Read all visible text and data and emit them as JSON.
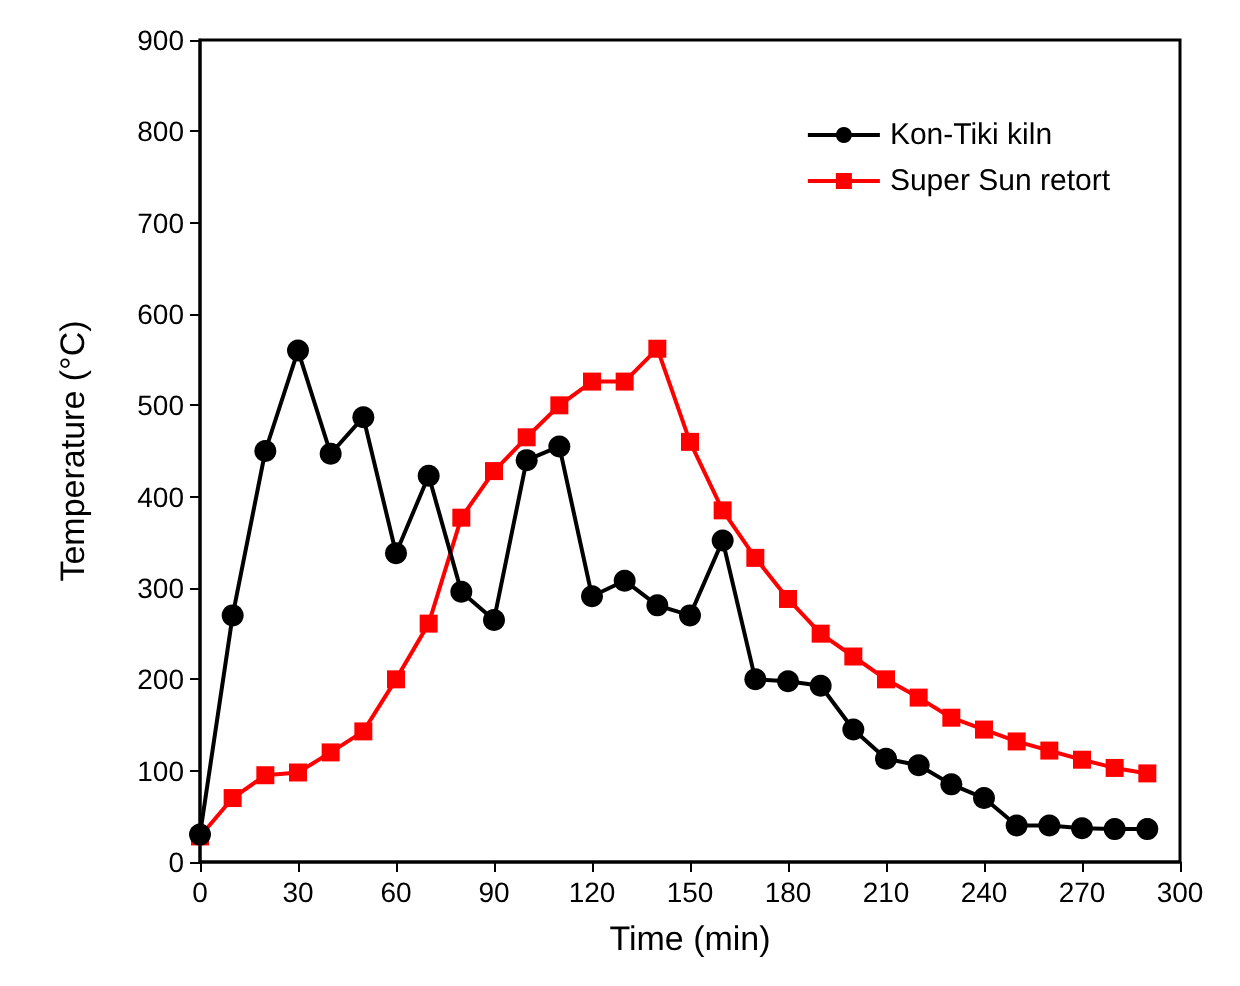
{
  "chart_data": {
    "type": "line",
    "xlabel": "Time (min)",
    "ylabel": "Temperature (°C)",
    "x": [
      0,
      10,
      20,
      30,
      40,
      50,
      60,
      70,
      80,
      90,
      100,
      110,
      120,
      130,
      140,
      150,
      160,
      170,
      180,
      190,
      200,
      210,
      220,
      230,
      240,
      250,
      260,
      270,
      280,
      290
    ],
    "series": [
      {
        "name": "Kon-Tiki kiln",
        "color": "#000000",
        "marker": "circle",
        "values": [
          30,
          270,
          450,
          560,
          447,
          487,
          338,
          423,
          296,
          265,
          440,
          455,
          291,
          308,
          281,
          270,
          352,
          200,
          198,
          193,
          145,
          113,
          106,
          85,
          70,
          40,
          40,
          37,
          36,
          36
        ]
      },
      {
        "name": "Super Sun retort",
        "color": "#ff0000",
        "marker": "square",
        "values": [
          28,
          70,
          95,
          98,
          120,
          143,
          200,
          261,
          377,
          428,
          465,
          500,
          526,
          526,
          562,
          460,
          385,
          333,
          288,
          250,
          225,
          200,
          180,
          158,
          145,
          132,
          122,
          112,
          103,
          97
        ]
      }
    ],
    "xlim": [
      0,
      300
    ],
    "xticks": [
      0,
      30,
      60,
      90,
      120,
      150,
      180,
      210,
      240,
      270,
      300
    ],
    "ylim": [
      0,
      900
    ],
    "yticks": [
      0,
      100,
      200,
      300,
      400,
      500,
      600,
      700,
      800,
      900
    ],
    "grid": false,
    "legend": "top right",
    "line_style": "solid"
  }
}
